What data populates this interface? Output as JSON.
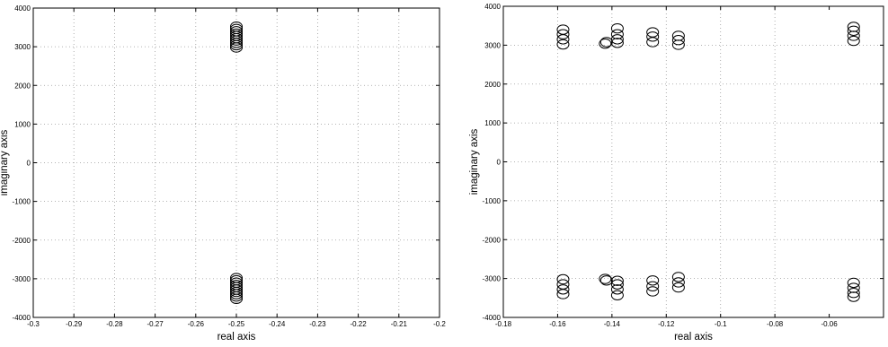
{
  "chart_data": [
    {
      "type": "scatter",
      "xlabel": "real axis",
      "ylabel": "imaginary axis",
      "xlim": [
        -0.3,
        -0.2
      ],
      "ylim": [
        -4000,
        4000
      ],
      "xticks": [
        "-0.3",
        "-0.29",
        "-0.28",
        "-0.27",
        "-0.26",
        "-0.25",
        "-0.24",
        "-0.23",
        "-0.22",
        "-0.21",
        "-0.2"
      ],
      "yticks": [
        "-4000",
        "-3000",
        "-2000",
        "-1000",
        "0",
        "1000",
        "2000",
        "3000",
        "4000"
      ],
      "grid": true,
      "marker": "circle",
      "points": [
        {
          "x": -0.25,
          "y": 2980
        },
        {
          "x": -0.25,
          "y": 3040
        },
        {
          "x": -0.25,
          "y": 3100
        },
        {
          "x": -0.25,
          "y": 3160
        },
        {
          "x": -0.25,
          "y": 3220
        },
        {
          "x": -0.25,
          "y": 3280
        },
        {
          "x": -0.25,
          "y": 3340
        },
        {
          "x": -0.25,
          "y": 3400
        },
        {
          "x": -0.25,
          "y": 3460
        },
        {
          "x": -0.25,
          "y": 3520
        },
        {
          "x": -0.25,
          "y": -2980
        },
        {
          "x": -0.25,
          "y": -3040
        },
        {
          "x": -0.25,
          "y": -3100
        },
        {
          "x": -0.25,
          "y": -3160
        },
        {
          "x": -0.25,
          "y": -3220
        },
        {
          "x": -0.25,
          "y": -3280
        },
        {
          "x": -0.25,
          "y": -3340
        },
        {
          "x": -0.25,
          "y": -3400
        },
        {
          "x": -0.25,
          "y": -3460
        },
        {
          "x": -0.25,
          "y": -3520
        }
      ]
    },
    {
      "type": "scatter",
      "xlabel": "real axis",
      "ylabel": "imaginary axis",
      "xlim": [
        -0.18,
        -0.04
      ],
      "ylim": [
        -4000,
        4000
      ],
      "xticks": [
        "-0.18",
        "-0.16",
        "-0.14",
        "-0.12",
        "-0.1",
        "-0.08",
        "-0.06"
      ],
      "yticks": [
        "-4000",
        "-3000",
        "-2000",
        "-1000",
        "0",
        "1000",
        "2000",
        "3000",
        "4000"
      ],
      "grid": true,
      "marker": "circle",
      "points": [
        {
          "x": -0.158,
          "y": 3020
        },
        {
          "x": -0.158,
          "y": 3150
        },
        {
          "x": -0.158,
          "y": 3280
        },
        {
          "x": -0.158,
          "y": 3400
        },
        {
          "x": -0.1425,
          "y": 3040
        },
        {
          "x": -0.142,
          "y": 3080
        },
        {
          "x": -0.138,
          "y": 3060
        },
        {
          "x": -0.138,
          "y": 3150
        },
        {
          "x": -0.138,
          "y": 3280
        },
        {
          "x": -0.138,
          "y": 3430
        },
        {
          "x": -0.125,
          "y": 3080
        },
        {
          "x": -0.125,
          "y": 3220
        },
        {
          "x": -0.125,
          "y": 3330
        },
        {
          "x": -0.1155,
          "y": 3010
        },
        {
          "x": -0.1155,
          "y": 3130
        },
        {
          "x": -0.1155,
          "y": 3240
        },
        {
          "x": -0.051,
          "y": 3110
        },
        {
          "x": -0.051,
          "y": 3240
        },
        {
          "x": -0.051,
          "y": 3370
        },
        {
          "x": -0.051,
          "y": 3470
        },
        {
          "x": -0.158,
          "y": -3020
        },
        {
          "x": -0.158,
          "y": -3150
        },
        {
          "x": -0.158,
          "y": -3280
        },
        {
          "x": -0.158,
          "y": -3400
        },
        {
          "x": -0.1425,
          "y": -3010
        },
        {
          "x": -0.142,
          "y": -3050
        },
        {
          "x": -0.138,
          "y": -3060
        },
        {
          "x": -0.138,
          "y": -3150
        },
        {
          "x": -0.138,
          "y": -3280
        },
        {
          "x": -0.138,
          "y": -3430
        },
        {
          "x": -0.125,
          "y": -3050
        },
        {
          "x": -0.125,
          "y": -3200
        },
        {
          "x": -0.125,
          "y": -3330
        },
        {
          "x": -0.1155,
          "y": -2960
        },
        {
          "x": -0.1155,
          "y": -3100
        },
        {
          "x": -0.1155,
          "y": -3230
        },
        {
          "x": -0.051,
          "y": -3110
        },
        {
          "x": -0.051,
          "y": -3240
        },
        {
          "x": -0.051,
          "y": -3370
        },
        {
          "x": -0.051,
          "y": -3470
        }
      ]
    }
  ]
}
